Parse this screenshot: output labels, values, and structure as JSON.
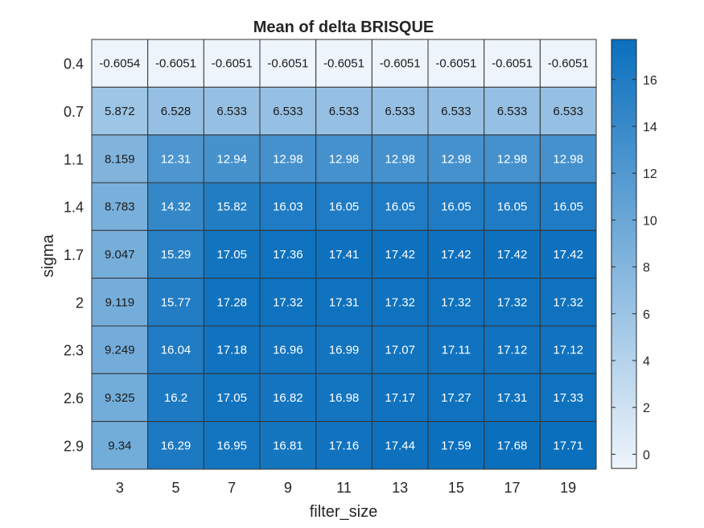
{
  "chart_data": {
    "type": "heatmap",
    "title": "Mean of delta BRISQUE",
    "xlabel": "filter_size",
    "ylabel": "sigma",
    "x_categories": [
      "3",
      "5",
      "7",
      "9",
      "11",
      "13",
      "15",
      "17",
      "19"
    ],
    "y_categories": [
      "0.4",
      "0.7",
      "1.1",
      "1.4",
      "1.7",
      "2",
      "2.3",
      "2.6",
      "2.9"
    ],
    "values": [
      [
        "-0.6054",
        "-0.6051",
        "-0.6051",
        "-0.6051",
        "-0.6051",
        "-0.6051",
        "-0.6051",
        "-0.6051",
        "-0.6051"
      ],
      [
        "5.872",
        "6.528",
        "6.533",
        "6.533",
        "6.533",
        "6.533",
        "6.533",
        "6.533",
        "6.533"
      ],
      [
        "8.159",
        "12.31",
        "12.94",
        "12.98",
        "12.98",
        "12.98",
        "12.98",
        "12.98",
        "12.98"
      ],
      [
        "8.783",
        "14.32",
        "15.82",
        "16.03",
        "16.05",
        "16.05",
        "16.05",
        "16.05",
        "16.05"
      ],
      [
        "9.047",
        "15.29",
        "17.05",
        "17.36",
        "17.41",
        "17.42",
        "17.42",
        "17.42",
        "17.42"
      ],
      [
        "9.119",
        "15.77",
        "17.28",
        "17.32",
        "17.31",
        "17.32",
        "17.32",
        "17.32",
        "17.32"
      ],
      [
        "9.249",
        "16.04",
        "17.18",
        "16.96",
        "16.99",
        "17.07",
        "17.11",
        "17.12",
        "17.12"
      ],
      [
        "9.325",
        "16.2",
        "17.05",
        "16.82",
        "16.98",
        "17.17",
        "17.27",
        "17.31",
        "17.33"
      ],
      [
        "9.34",
        "16.29",
        "16.95",
        "16.81",
        "17.16",
        "17.44",
        "17.59",
        "17.68",
        "17.71"
      ]
    ],
    "colorbar": {
      "ticks": [
        "0",
        "2",
        "4",
        "6",
        "8",
        "10",
        "12",
        "14",
        "16"
      ],
      "range": [
        -0.6054,
        17.71
      ]
    },
    "colormap": {
      "low": "#eef4fb",
      "high": "#0a6fbd"
    },
    "grid_color": "#333333",
    "legend_position": "right"
  }
}
